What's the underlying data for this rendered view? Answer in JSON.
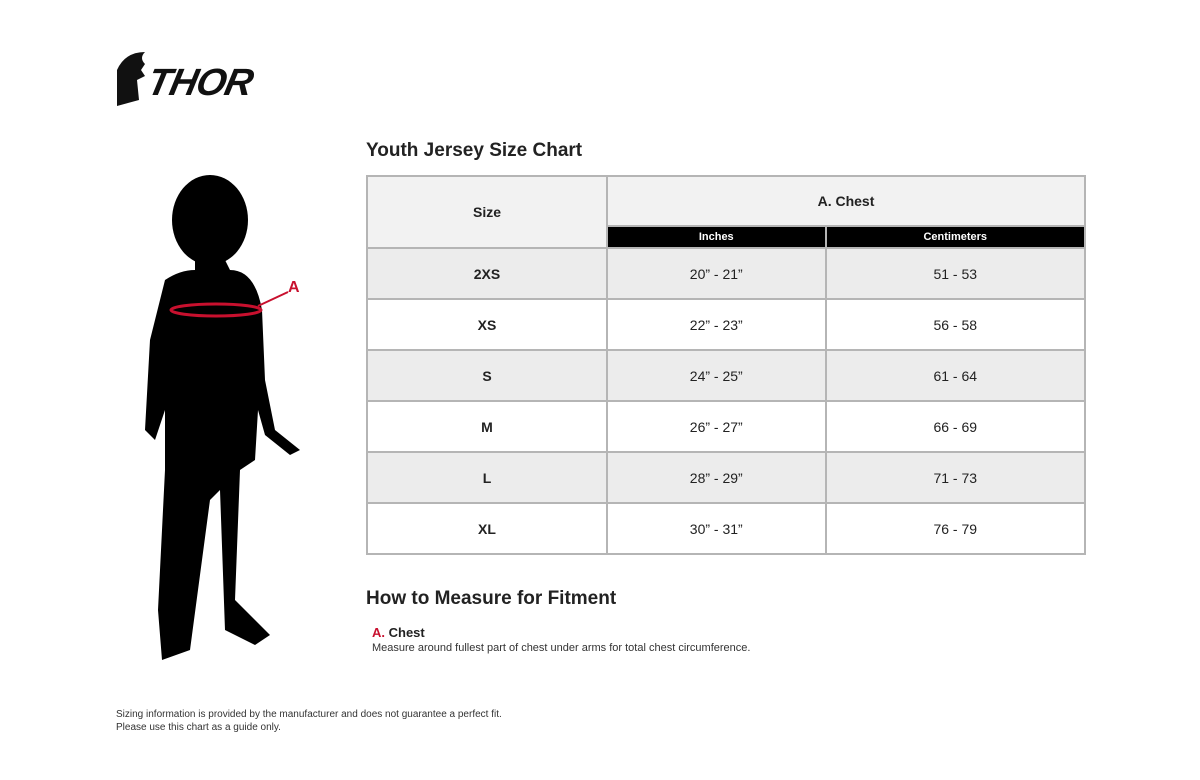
{
  "brand": "THOR",
  "title": "Youth Jersey Size Chart",
  "table": {
    "size_header": "Size",
    "group_header": "A. Chest",
    "sub_headers": [
      "Inches",
      "Centimeters"
    ],
    "rows": [
      [
        "2XS",
        "20” - 21”",
        "51 - 53"
      ],
      [
        "XS",
        "22” - 23”",
        "56 - 58"
      ],
      [
        "S",
        "24” - 25”",
        "61 - 64"
      ],
      [
        "M",
        "26” - 27”",
        "66 - 69"
      ],
      [
        "L",
        "28” - 29”",
        "71 - 73"
      ],
      [
        "XL",
        "30” - 31”",
        "76 - 79"
      ]
    ]
  },
  "figure_marker": "A",
  "accent_color": "#c8102e",
  "how_to": {
    "title": "How to Measure for Fitment",
    "letter": "A.",
    "label": "Chest",
    "text": "Measure around fullest part of chest under arms for total chest circumference."
  },
  "footer": [
    "Sizing information is provided by the manufacturer and does not guarantee a perfect fit.",
    "Please use this chart as a guide only."
  ]
}
